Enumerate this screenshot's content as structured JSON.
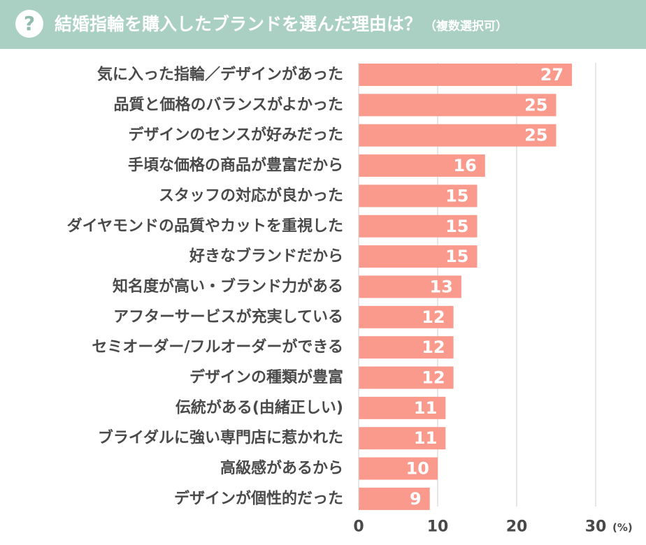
{
  "header": {
    "icon": "question-icon",
    "icon_glyph": "?",
    "title": "結婚指輪を購入したブランドを選んだ理由は？",
    "subtitle": "（複数選択可）",
    "background_color": "#a9d0c2"
  },
  "chart_data": {
    "type": "bar",
    "orientation": "horizontal",
    "title": "結婚指輪を購入したブランドを選んだ理由は？（複数選択可）",
    "categories": [
      "気に入った指輪／デザインがあった",
      "品質と価格のバランスがよかった",
      "デザインのセンスが好みだった",
      "手頃な価格の商品が豊富だから",
      "スタッフの対応が良かった",
      "ダイヤモンドの品質やカットを重視した",
      "好きなブランドだから",
      "知名度が高い・ブランド力がある",
      "アフターサービスが充実している",
      "セミオーダー/フルオーダーができる",
      "デザインの種類が豊富",
      "伝統がある(由緒正しい)",
      "ブライダルに強い専門店に惹かれた",
      "高級感があるから",
      "デザインが個性的だった"
    ],
    "values": [
      27,
      25,
      25,
      16,
      15,
      15,
      15,
      13,
      12,
      12,
      12,
      11,
      11,
      10,
      9
    ],
    "xlim": [
      0,
      30
    ],
    "xticks": [
      0,
      10,
      20,
      30
    ],
    "unit": "(%)",
    "grid": true,
    "bar_color": "#fa9a8c",
    "grid_color": "#e6e6e6"
  }
}
